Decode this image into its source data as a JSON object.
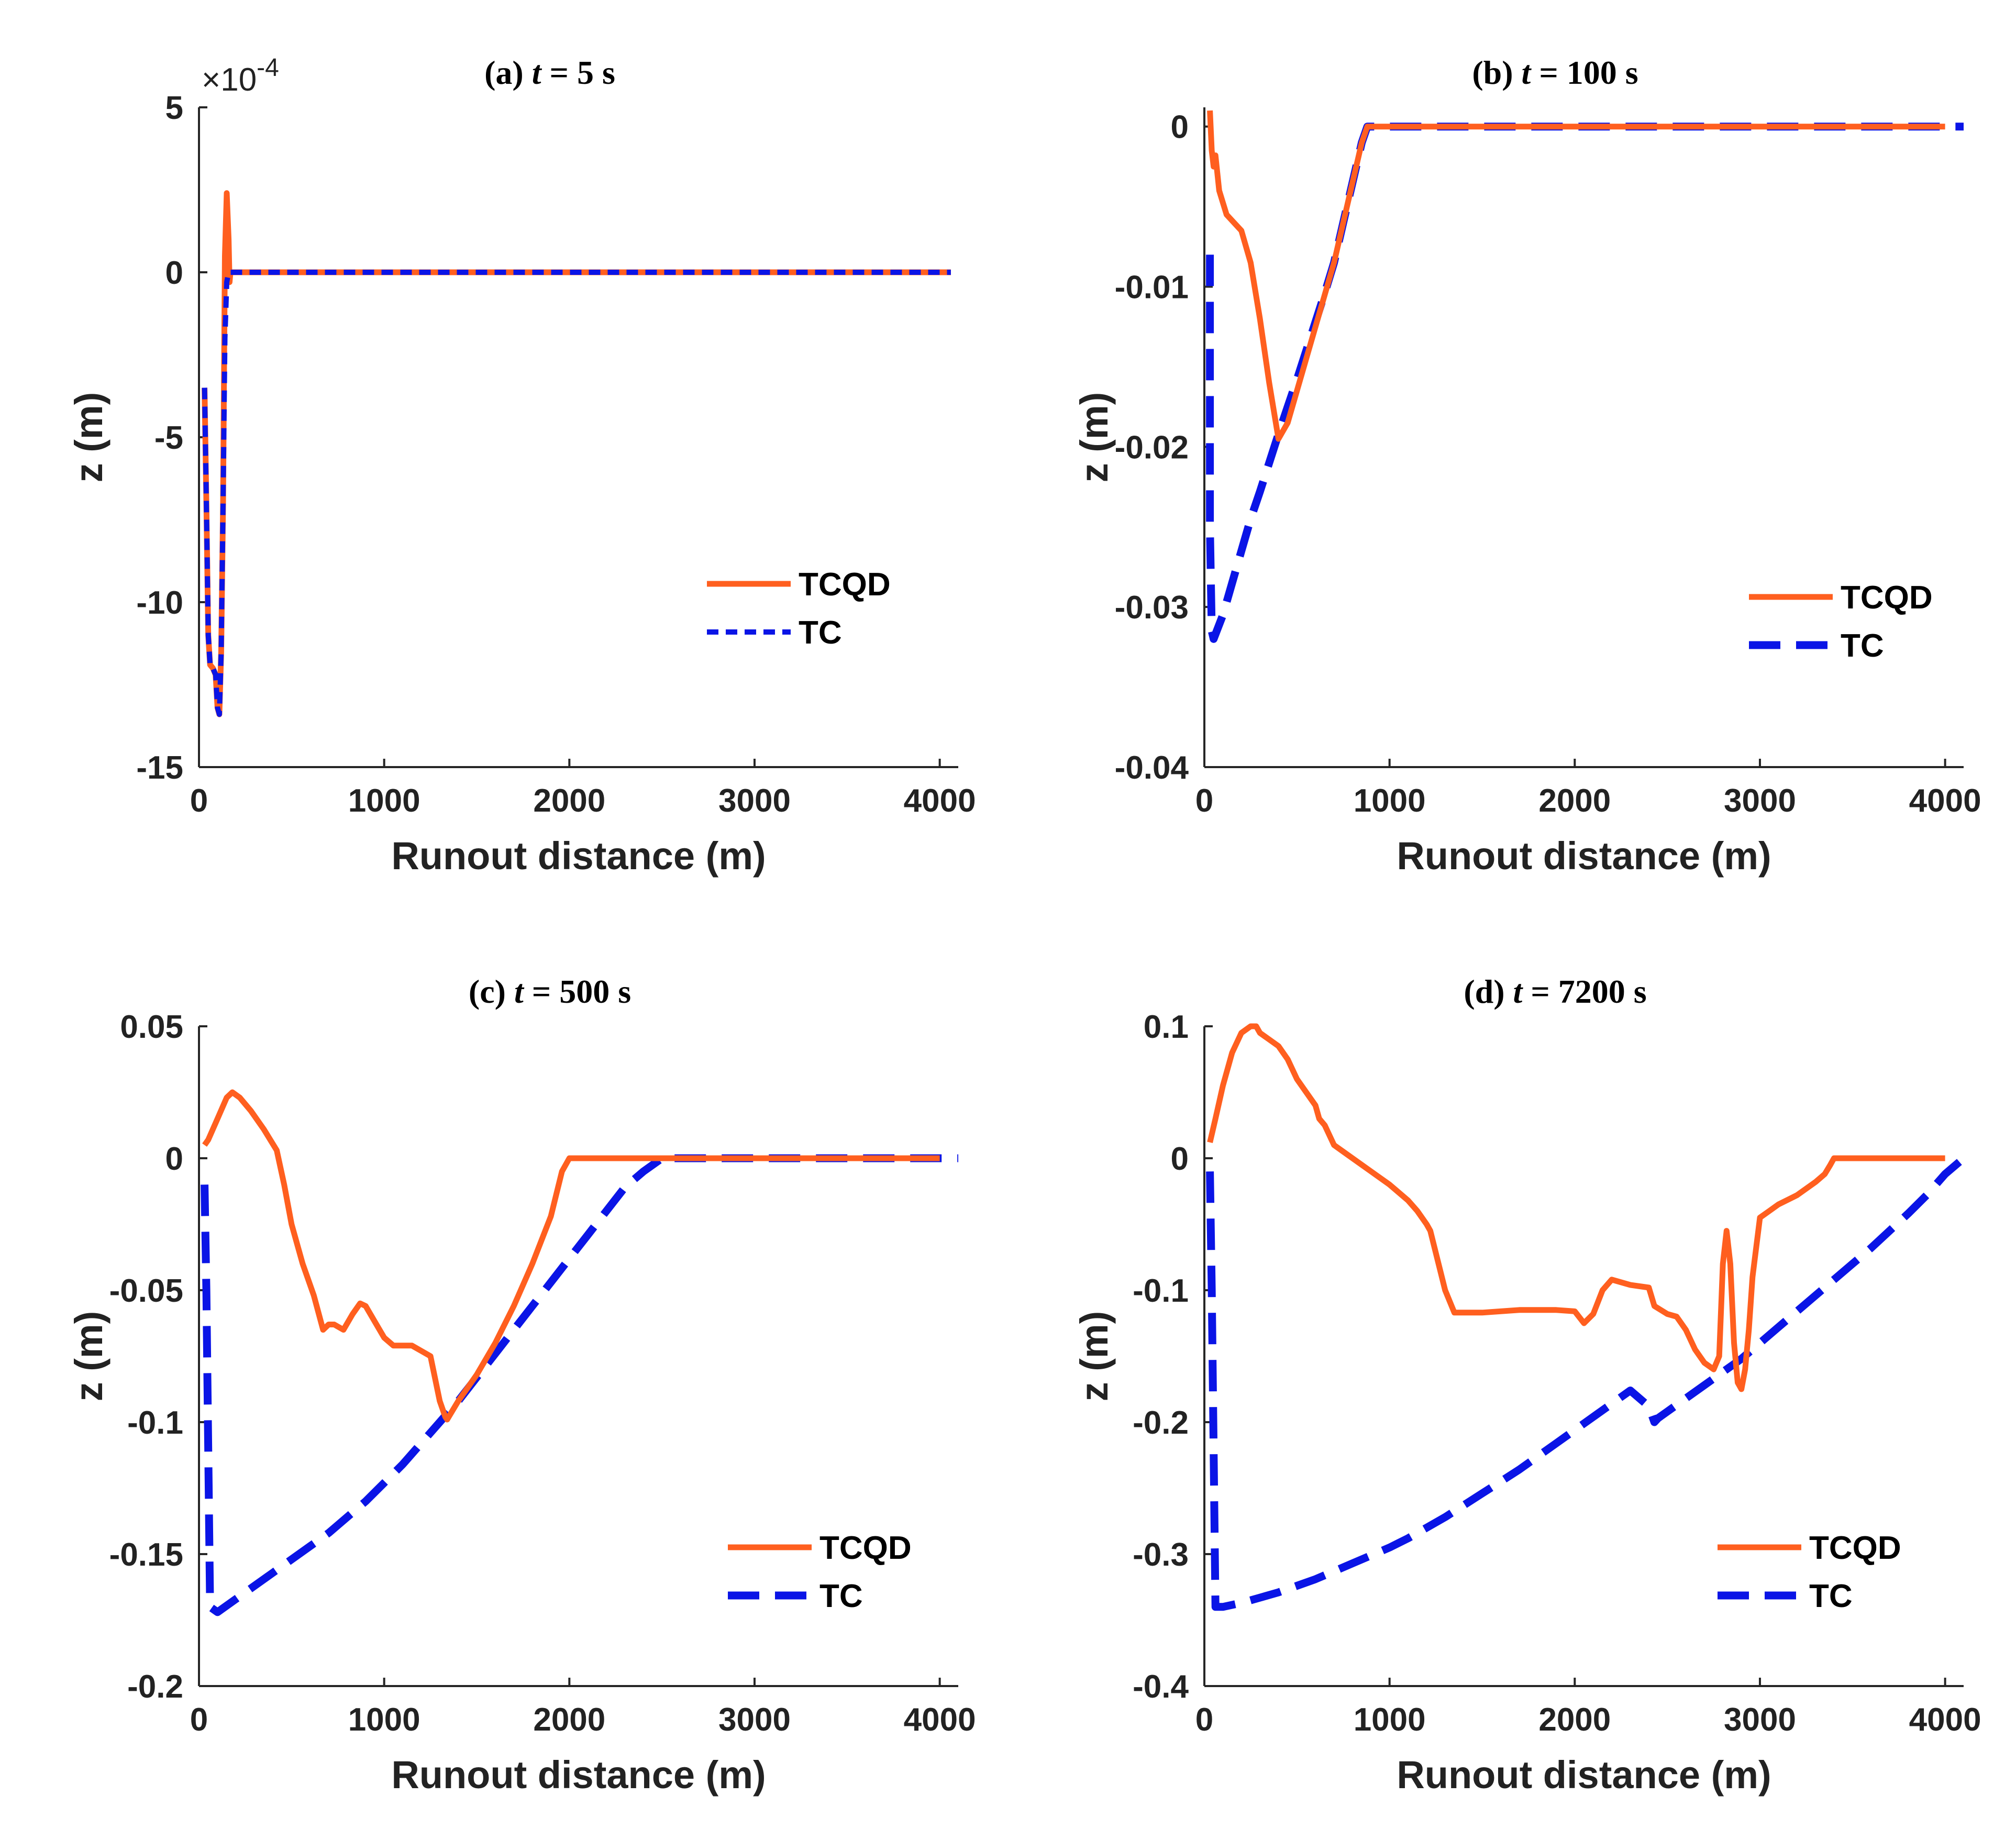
{
  "colors": {
    "tcqd": "#ff5f1f",
    "tc": "#0a14e6",
    "axis": "#262626"
  },
  "chart_data": [
    {
      "type": "line",
      "panel": "a",
      "title_prefix": "(a) ",
      "title_var": "t",
      "title_suffix": " = 5 s",
      "xlabel": "Runout distance (m)",
      "ylabel": "z (m)",
      "xlim": [
        0,
        4100
      ],
      "ylim": [
        -15,
        5
      ],
      "xticks": [
        "0",
        "1000",
        "2000",
        "3000",
        "4000"
      ],
      "yticks": [
        "5",
        "0",
        "-5",
        "-10",
        "-15"
      ],
      "y_exponent_label": "×10",
      "y_exponent_power": "-4",
      "legend": {
        "position": "right-center",
        "entries": [
          "TCQD",
          "TC"
        ]
      },
      "series": [
        {
          "name": "TCQD",
          "style": "solid",
          "x": [
            30,
            40,
            50,
            60,
            75,
            90,
            100,
            110,
            120,
            130,
            140,
            150,
            160,
            165,
            170,
            180,
            200,
            500,
            1000,
            2000,
            3000,
            4000,
            4060
          ],
          "y": [
            -3.5,
            -7.0,
            -11.0,
            -11.9,
            -12.0,
            -12.2,
            -13.2,
            -13.4,
            -11.5,
            -7.0,
            0.5,
            2.4,
            1.0,
            -0.3,
            0,
            0,
            0,
            0,
            0,
            0,
            0,
            0,
            0
          ]
        },
        {
          "name": "TC",
          "style": "dotted",
          "x": [
            30,
            40,
            50,
            60,
            75,
            90,
            100,
            110,
            120,
            130,
            140,
            150,
            160,
            170,
            200,
            500,
            1000,
            2000,
            3000,
            4000,
            4060
          ],
          "y": [
            -3.5,
            -7.0,
            -11.0,
            -11.9,
            -12.0,
            -12.2,
            -13.2,
            -13.4,
            -11.5,
            -7.0,
            -2.0,
            -0.3,
            0,
            0,
            0,
            0,
            0,
            0,
            0,
            0,
            0
          ]
        }
      ]
    },
    {
      "type": "line",
      "panel": "b",
      "title_prefix": "(b)  ",
      "title_var": "t",
      "title_suffix": " = 100 s",
      "xlabel": "Runout distance (m)",
      "ylabel": "z (m)",
      "xlim": [
        0,
        4100
      ],
      "ylim": [
        -0.04,
        0.0012
      ],
      "xticks": [
        "0",
        "1000",
        "2000",
        "3000",
        "4000"
      ],
      "yticks": [
        "0",
        "-0.01",
        "-0.02",
        "-0.03",
        "-0.04"
      ],
      "legend": {
        "position": "lower-right",
        "entries": [
          "TCQD",
          "TC"
        ]
      },
      "series": [
        {
          "name": "TCQD",
          "style": "solid",
          "x": [
            30,
            40,
            50,
            60,
            80,
            120,
            160,
            200,
            250,
            300,
            350,
            400,
            450,
            500,
            550,
            600,
            650,
            700,
            750,
            800,
            850,
            880,
            1000,
            2000,
            3000,
            4000
          ],
          "y": [
            0.001,
            -0.0015,
            -0.0025,
            -0.0018,
            -0.004,
            -0.0055,
            -0.006,
            -0.0065,
            -0.0085,
            -0.012,
            -0.016,
            -0.0195,
            -0.0185,
            -0.0165,
            -0.0145,
            -0.0125,
            -0.0105,
            -0.0085,
            -0.006,
            -0.0035,
            -0.001,
            0,
            0,
            0,
            0,
            0
          ]
        },
        {
          "name": "TC",
          "style": "dashed",
          "x": [
            30,
            30,
            40,
            50,
            100,
            150,
            200,
            250,
            300,
            350,
            400,
            450,
            500,
            550,
            600,
            650,
            700,
            750,
            800,
            850,
            880,
            1000,
            2000,
            3000,
            4000,
            4100
          ],
          "y": [
            -0.008,
            -0.025,
            -0.0315,
            -0.032,
            -0.0305,
            -0.0285,
            -0.0265,
            -0.0245,
            -0.0228,
            -0.021,
            -0.0192,
            -0.0175,
            -0.0158,
            -0.014,
            -0.0122,
            -0.0104,
            -0.0085,
            -0.006,
            -0.0035,
            -0.001,
            0,
            0,
            0,
            0,
            0,
            0
          ]
        }
      ]
    },
    {
      "type": "line",
      "panel": "c",
      "title_prefix": "(c)  ",
      "title_var": "t",
      "title_suffix": " = 500 s",
      "xlabel": "Runout distance (m)",
      "ylabel": "z (m)",
      "xlim": [
        0,
        4100
      ],
      "ylim": [
        -0.2,
        0.05
      ],
      "xticks": [
        "0",
        "1000",
        "2000",
        "3000",
        "4000"
      ],
      "yticks": [
        "0.05",
        "0",
        "-0.05",
        "-0.1",
        "-0.15",
        "-0.2"
      ],
      "legend": {
        "position": "lower-right",
        "entries": [
          "TCQD",
          "TC"
        ]
      },
      "series": [
        {
          "name": "TCQD",
          "style": "solid",
          "x": [
            30,
            50,
            100,
            150,
            180,
            220,
            280,
            350,
            420,
            460,
            500,
            560,
            620,
            670,
            700,
            730,
            780,
            830,
            870,
            900,
            950,
            1000,
            1050,
            1100,
            1150,
            1200,
            1250,
            1300,
            1330,
            1340,
            1400,
            1500,
            1600,
            1700,
            1800,
            1900,
            1960,
            2000,
            3000,
            4000
          ],
          "y": [
            0.005,
            0.007,
            0.015,
            0.023,
            0.025,
            0.023,
            0.018,
            0.011,
            0.003,
            -0.01,
            -0.025,
            -0.04,
            -0.052,
            -0.065,
            -0.063,
            -0.063,
            -0.065,
            -0.059,
            -0.055,
            -0.056,
            -0.062,
            -0.068,
            -0.071,
            -0.071,
            -0.071,
            -0.073,
            -0.075,
            -0.092,
            -0.098,
            -0.099,
            -0.092,
            -0.082,
            -0.07,
            -0.056,
            -0.04,
            -0.022,
            -0.005,
            0,
            0,
            0
          ]
        },
        {
          "name": "TC",
          "style": "dashed",
          "x": [
            30,
            40,
            60,
            100,
            200,
            300,
            400,
            500,
            600,
            700,
            800,
            900,
            1000,
            1100,
            1200,
            1300,
            1400,
            1500,
            1600,
            1700,
            1800,
            1900,
            2000,
            2100,
            2200,
            2300,
            2400,
            2500,
            2550,
            2600,
            3000,
            4000,
            4100
          ],
          "y": [
            -0.01,
            -0.05,
            -0.17,
            -0.172,
            -0.167,
            -0.162,
            -0.157,
            -0.152,
            -0.147,
            -0.142,
            -0.136,
            -0.13,
            -0.123,
            -0.116,
            -0.108,
            -0.1,
            -0.092,
            -0.083,
            -0.074,
            -0.065,
            -0.056,
            -0.047,
            -0.038,
            -0.029,
            -0.02,
            -0.011,
            -0.005,
            0,
            0,
            0,
            0,
            0,
            0
          ]
        }
      ]
    },
    {
      "type": "line",
      "panel": "d",
      "title_prefix": "(d)  ",
      "title_var": "t",
      "title_suffix": " = 7200 s",
      "xlabel": "Runout distance (m)",
      "ylabel": "z (m)",
      "xlim": [
        0,
        4100
      ],
      "ylim": [
        -0.4,
        0.1
      ],
      "xticks": [
        "0",
        "1000",
        "2000",
        "3000",
        "4000"
      ],
      "yticks": [
        "0.1",
        "0",
        "-0.1",
        "-0.2",
        "-0.3",
        "-0.4"
      ],
      "legend": {
        "position": "lower-right",
        "entries": [
          "TCQD",
          "TC"
        ]
      },
      "series": [
        {
          "name": "TCQD",
          "style": "solid",
          "x": [
            30,
            60,
            100,
            150,
            200,
            250,
            280,
            300,
            350,
            400,
            450,
            500,
            550,
            600,
            620,
            650,
            700,
            750,
            800,
            900,
            1000,
            1100,
            1150,
            1200,
            1220,
            1300,
            1350,
            1400,
            1500,
            1600,
            1700,
            1800,
            1900,
            2000,
            2050,
            2100,
            2150,
            2200,
            2300,
            2400,
            2430,
            2500,
            2550,
            2600,
            2650,
            2700,
            2750,
            2780,
            2800,
            2820,
            2840,
            2860,
            2880,
            2900,
            2920,
            2940,
            2960,
            3000,
            3050,
            3100,
            3200,
            3300,
            3350,
            3380,
            3400,
            3500,
            3600,
            3700,
            3800,
            3900,
            4000
          ],
          "y": [
            0.012,
            0.03,
            0.055,
            0.08,
            0.095,
            0.1,
            0.1,
            0.095,
            0.09,
            0.085,
            0.075,
            0.06,
            0.05,
            0.04,
            0.03,
            0.025,
            0.01,
            0.005,
            0.0,
            -0.01,
            -0.02,
            -0.032,
            -0.04,
            -0.05,
            -0.055,
            -0.1,
            -0.117,
            -0.117,
            -0.117,
            -0.116,
            -0.115,
            -0.115,
            -0.115,
            -0.116,
            -0.125,
            -0.118,
            -0.1,
            -0.092,
            -0.096,
            -0.098,
            -0.112,
            -0.118,
            -0.12,
            -0.13,
            -0.145,
            -0.155,
            -0.16,
            -0.15,
            -0.08,
            -0.055,
            -0.08,
            -0.14,
            -0.17,
            -0.175,
            -0.16,
            -0.13,
            -0.09,
            -0.045,
            -0.04,
            -0.035,
            -0.028,
            -0.018,
            -0.012,
            -0.005,
            0,
            0,
            0,
            0,
            0,
            0,
            0
          ]
        },
        {
          "name": "TC",
          "style": "dashed",
          "x": [
            30,
            40,
            60,
            100,
            200,
            300,
            400,
            500,
            600,
            700,
            800,
            900,
            1000,
            1100,
            1200,
            1300,
            1400,
            1500,
            1600,
            1700,
            1800,
            1900,
            2000,
            2100,
            2200,
            2300,
            2400,
            2430,
            2450,
            2500,
            2600,
            2700,
            2800,
            2900,
            3000,
            3100,
            3200,
            3300,
            3400,
            3500,
            3600,
            3700,
            3800,
            3900,
            4000,
            4100
          ],
          "y": [
            -0.01,
            -0.1,
            -0.34,
            -0.34,
            -0.337,
            -0.333,
            -0.329,
            -0.324,
            -0.319,
            -0.313,
            -0.307,
            -0.301,
            -0.295,
            -0.288,
            -0.28,
            -0.272,
            -0.263,
            -0.254,
            -0.245,
            -0.236,
            -0.226,
            -0.216,
            -0.206,
            -0.196,
            -0.186,
            -0.176,
            -0.188,
            -0.2,
            -0.197,
            -0.192,
            -0.182,
            -0.172,
            -0.162,
            -0.152,
            -0.14,
            -0.128,
            -0.116,
            -0.104,
            -0.092,
            -0.08,
            -0.068,
            -0.055,
            -0.042,
            -0.028,
            -0.012,
            0
          ]
        }
      ]
    }
  ]
}
